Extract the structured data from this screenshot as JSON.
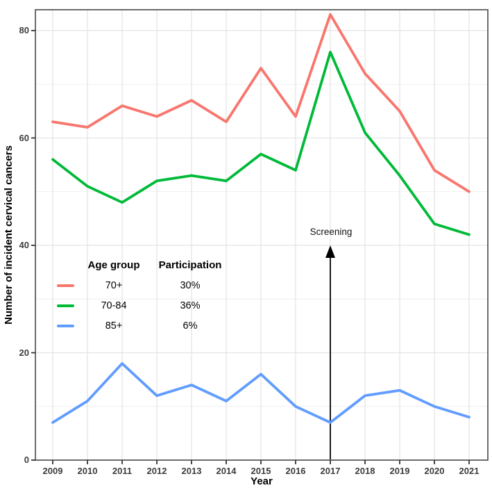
{
  "figure": {
    "axes": {
      "y_label": "Number of incident cervical cancers",
      "x_label": "Year",
      "y_ticks": [
        0,
        20,
        40,
        60,
        80
      ],
      "y_minor": [
        10,
        30,
        50,
        70
      ]
    },
    "legend": {
      "header": {
        "age_group": "Age group",
        "participation": "Participation"
      },
      "rows": [
        {
          "age_group": "70+",
          "participation": "30%",
          "color": "#F8766D"
        },
        {
          "age_group": "70-84",
          "participation": "36%",
          "color": "#00BA38"
        },
        {
          "age_group": "85+",
          "participation": "6%",
          "color": "#619CFF"
        }
      ]
    },
    "annotation": {
      "label": "Screening"
    }
  },
  "chart_data": {
    "type": "line",
    "title": "",
    "xlabel": "Year",
    "ylabel": "Number of incident cervical cancers",
    "x": [
      2009,
      2010,
      2011,
      2012,
      2013,
      2014,
      2015,
      2016,
      2017,
      2018,
      2019,
      2020,
      2021
    ],
    "series": [
      {
        "name": "70+",
        "participation": "30%",
        "color": "#F8766D",
        "values": [
          63,
          62,
          66,
          64,
          67,
          63,
          73,
          64,
          83,
          72,
          65,
          54,
          50
        ]
      },
      {
        "name": "70-84",
        "participation": "36%",
        "color": "#00BA38",
        "values": [
          56,
          51,
          48,
          52,
          53,
          52,
          57,
          54,
          76,
          61,
          53,
          44,
          42
        ]
      },
      {
        "name": "85+",
        "participation": "6%",
        "color": "#619CFF",
        "values": [
          7,
          11,
          18,
          12,
          14,
          11,
          16,
          10,
          7,
          12,
          13,
          10,
          8
        ]
      }
    ],
    "ylim": [
      0,
      84
    ],
    "grid": true,
    "legend_position": "inside-left-middle",
    "annotation": {
      "label": "Screening",
      "x": 2017,
      "arrow_from_y": 0,
      "arrow_to_y": 40
    }
  }
}
